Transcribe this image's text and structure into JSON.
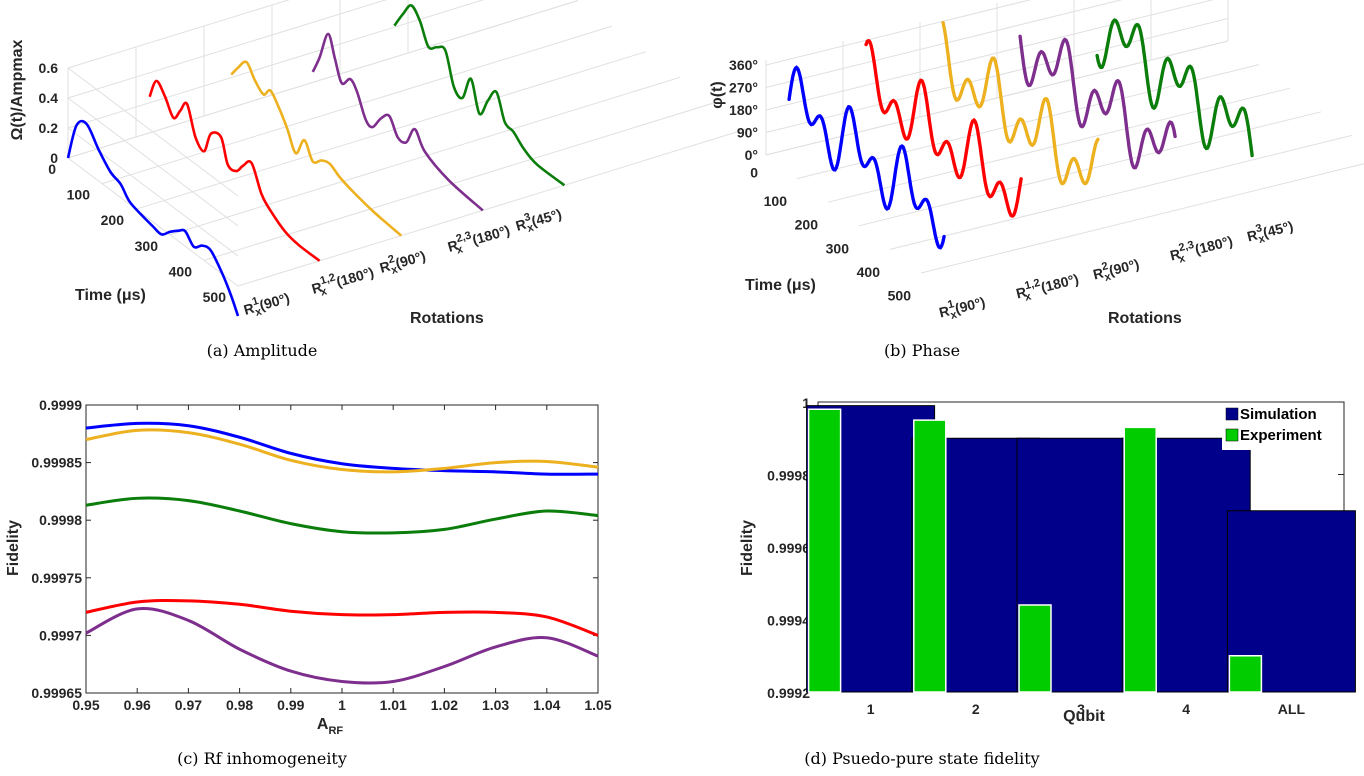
{
  "colors": {
    "blue": "#0000ff",
    "red": "#ff0000",
    "yellow": "#edb120",
    "purple": "#7e2f8e",
    "green": "#0a7d0a",
    "navy": "#00008b",
    "lime": "#00cc00"
  },
  "chart_data": [
    {
      "type": "line",
      "panel": "a",
      "caption": "(a) Amplitude",
      "ylabel": "Ω(t)/Amp_max",
      "time_label": "Time (μs)",
      "rotations_label": "Rotations",
      "z_ticks": [
        "0",
        "0.2",
        "0.4",
        "0.6"
      ],
      "time_ticks": [
        "0",
        "100",
        "200",
        "300",
        "400",
        "500"
      ],
      "categories": [
        "R_x^1(90°)",
        "R_x^{1,2}(180°)",
        "R_x^2(90°)",
        "R_x^{2,3}(180°)",
        "R_x^3(45°)"
      ],
      "time_range": [
        0,
        500
      ],
      "z_range": [
        0,
        0.6
      ],
      "series_colors": [
        "blue",
        "red",
        "yellow",
        "purple",
        "green"
      ]
    },
    {
      "type": "scatter",
      "panel": "b",
      "caption": "(b) Phase",
      "ylabel": "φ(t)",
      "time_label": "Time (μs)",
      "rotations_label": "Rotations",
      "z_ticks": [
        "0",
        "0°",
        "90°",
        "180°",
        "270°",
        "360°"
      ],
      "time_ticks": [
        "100",
        "200",
        "300",
        "400",
        "500"
      ],
      "categories": [
        "R_x^1(90°)",
        "R_x^{1,2}(180°)",
        "R_x^2(90°)",
        "R_x^{2,3}(180°)",
        "R_x^3(45°)"
      ],
      "series_colors": [
        "blue",
        "red",
        "yellow",
        "purple",
        "green"
      ]
    },
    {
      "type": "line",
      "panel": "c",
      "caption": "(c) Rf inhomogeneity",
      "xlabel": "A_RF",
      "ylabel": "Fidelity",
      "xlim": [
        0.95,
        1.05
      ],
      "ylim": [
        0.99965,
        0.9999
      ],
      "x_ticks": [
        "0.95",
        "0.96",
        "0.97",
        "0.98",
        "0.99",
        "1",
        "1.01",
        "1.02",
        "1.03",
        "1.04",
        "1.05"
      ],
      "y_ticks": [
        "0.99965",
        "0.9997",
        "0.99975",
        "0.9998",
        "0.99985",
        "0.9999"
      ],
      "x": [
        0.95,
        0.96,
        0.97,
        0.98,
        0.99,
        1.0,
        1.01,
        1.02,
        1.03,
        1.04,
        1.05
      ],
      "series": [
        {
          "color": "blue",
          "values": [
            0.99988,
            0.999884,
            0.999882,
            0.999872,
            0.999858,
            0.999849,
            0.999845,
            0.999843,
            0.999842,
            0.99984,
            0.99984
          ]
        },
        {
          "color": "yellow",
          "values": [
            0.99987,
            0.999878,
            0.999876,
            0.999866,
            0.999852,
            0.999844,
            0.999842,
            0.999845,
            0.99985,
            0.999851,
            0.999846
          ]
        },
        {
          "color": "green",
          "values": [
            0.999813,
            0.999819,
            0.999817,
            0.999808,
            0.999797,
            0.99979,
            0.999789,
            0.999792,
            0.999801,
            0.999808,
            0.999804
          ]
        },
        {
          "color": "red",
          "values": [
            0.99972,
            0.999729,
            0.99973,
            0.999727,
            0.999721,
            0.999718,
            0.999718,
            0.99972,
            0.99972,
            0.999716,
            0.9997
          ]
        },
        {
          "color": "purple",
          "values": [
            0.999702,
            0.999723,
            0.999713,
            0.999688,
            0.999669,
            0.99966,
            0.99966,
            0.999673,
            0.99969,
            0.999698,
            0.999682
          ]
        }
      ]
    },
    {
      "type": "bar",
      "panel": "d",
      "caption": "(d) Psuedo-pure state fidelity",
      "xlabel": "Qubit",
      "ylabel": "Fidelity",
      "categories": [
        "1",
        "2",
        "3",
        "4",
        "ALL"
      ],
      "ylim": [
        0.9992,
        1.0
      ],
      "y_ticks": [
        "0.9992",
        "0.9994",
        "0.9996",
        "0.9998",
        "1"
      ],
      "legend_position": "top-right",
      "series": [
        {
          "name": "Simulation",
          "color": "navy",
          "values": [
            0.99999,
            0.9999,
            0.9999,
            0.9999,
            0.9997
          ]
        },
        {
          "name": "Experiment",
          "color": "lime",
          "values": [
            0.99998,
            0.99995,
            0.99944,
            0.99993,
            0.9993
          ]
        }
      ]
    }
  ]
}
